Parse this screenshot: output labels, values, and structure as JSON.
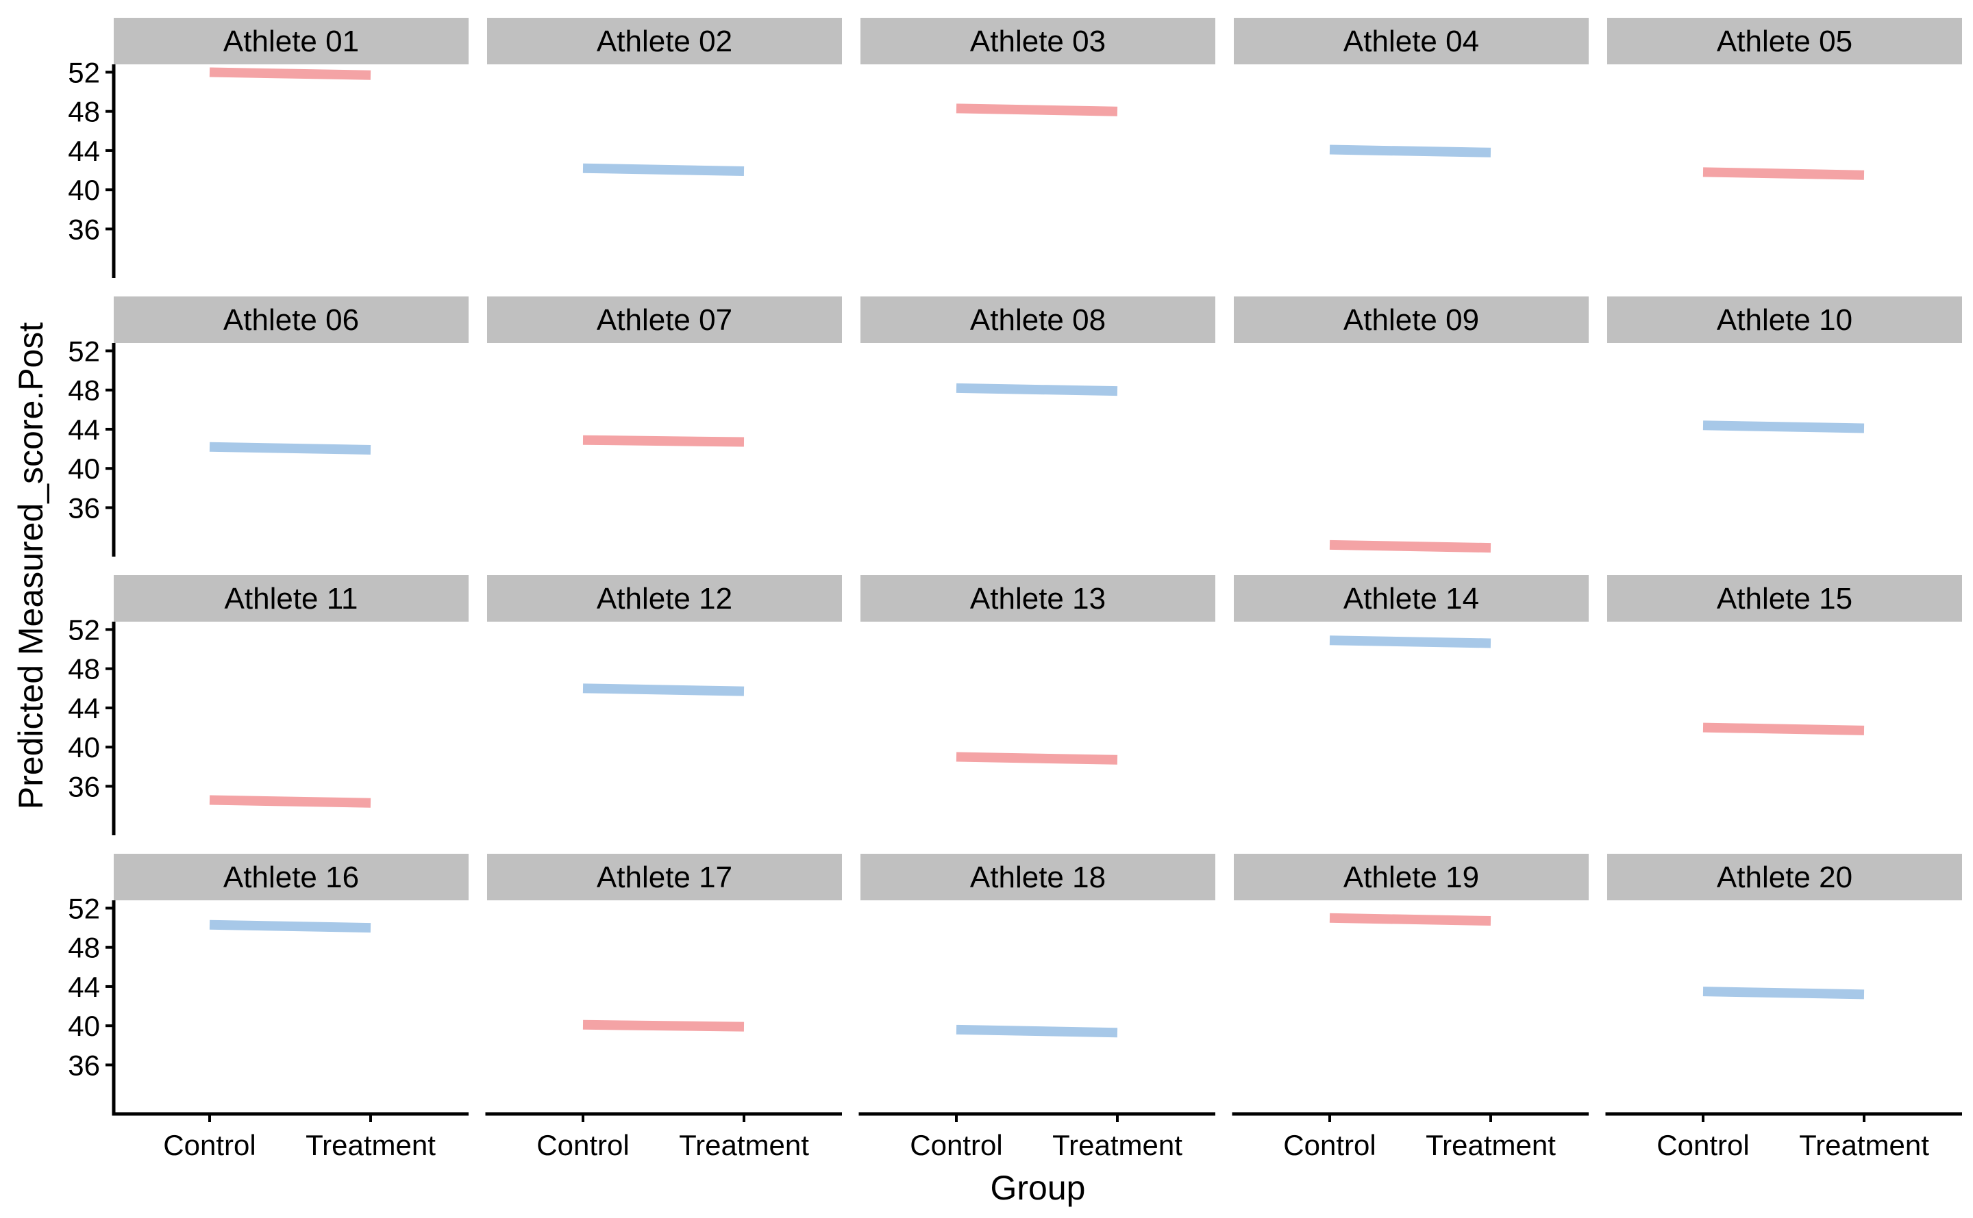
{
  "chart_data": {
    "type": "line",
    "layout": "facet-grid",
    "rows": 4,
    "cols": 5,
    "xlabel": "Group",
    "ylabel": "Predicted Measured_score.Post",
    "x_categories": [
      "Control",
      "Treatment"
    ],
    "y_ticks": [
      36,
      40,
      44,
      48,
      52
    ],
    "ylim": [
      31,
      52.8
    ],
    "colors": {
      "red": "#F4A3A5",
      "blue": "#A7C8E8",
      "strip_background": "#C0C0C0",
      "axis": "#000000"
    },
    "panels": [
      {
        "label": "Athlete 01",
        "color": "red",
        "values": [
          52.0,
          51.7
        ]
      },
      {
        "label": "Athlete 02",
        "color": "blue",
        "values": [
          42.2,
          41.9
        ]
      },
      {
        "label": "Athlete 03",
        "color": "red",
        "values": [
          48.3,
          48.0
        ]
      },
      {
        "label": "Athlete 04",
        "color": "blue",
        "values": [
          44.1,
          43.8
        ]
      },
      {
        "label": "Athlete 05",
        "color": "red",
        "values": [
          41.8,
          41.5
        ]
      },
      {
        "label": "Athlete 06",
        "color": "blue",
        "values": [
          42.2,
          41.9
        ]
      },
      {
        "label": "Athlete 07",
        "color": "red",
        "values": [
          42.9,
          42.7
        ]
      },
      {
        "label": "Athlete 08",
        "color": "blue",
        "values": [
          48.2,
          47.9
        ]
      },
      {
        "label": "Athlete 09",
        "color": "red",
        "values": [
          32.2,
          31.9
        ]
      },
      {
        "label": "Athlete 10",
        "color": "blue",
        "values": [
          44.4,
          44.1
        ]
      },
      {
        "label": "Athlete 11",
        "color": "red",
        "values": [
          34.6,
          34.3
        ]
      },
      {
        "label": "Athlete 12",
        "color": "blue",
        "values": [
          46.0,
          45.7
        ]
      },
      {
        "label": "Athlete 13",
        "color": "red",
        "values": [
          39.0,
          38.7
        ]
      },
      {
        "label": "Athlete 14",
        "color": "blue",
        "values": [
          50.9,
          50.6
        ]
      },
      {
        "label": "Athlete 15",
        "color": "red",
        "values": [
          42.0,
          41.7
        ]
      },
      {
        "label": "Athlete 16",
        "color": "blue",
        "values": [
          50.3,
          50.0
        ]
      },
      {
        "label": "Athlete 17",
        "color": "red",
        "values": [
          40.1,
          39.9
        ]
      },
      {
        "label": "Athlete 18",
        "color": "blue",
        "values": [
          39.6,
          39.3
        ]
      },
      {
        "label": "Athlete 19",
        "color": "red",
        "values": [
          51.0,
          50.7
        ]
      },
      {
        "label": "Athlete 20",
        "color": "blue",
        "values": [
          43.5,
          43.2
        ]
      }
    ]
  }
}
